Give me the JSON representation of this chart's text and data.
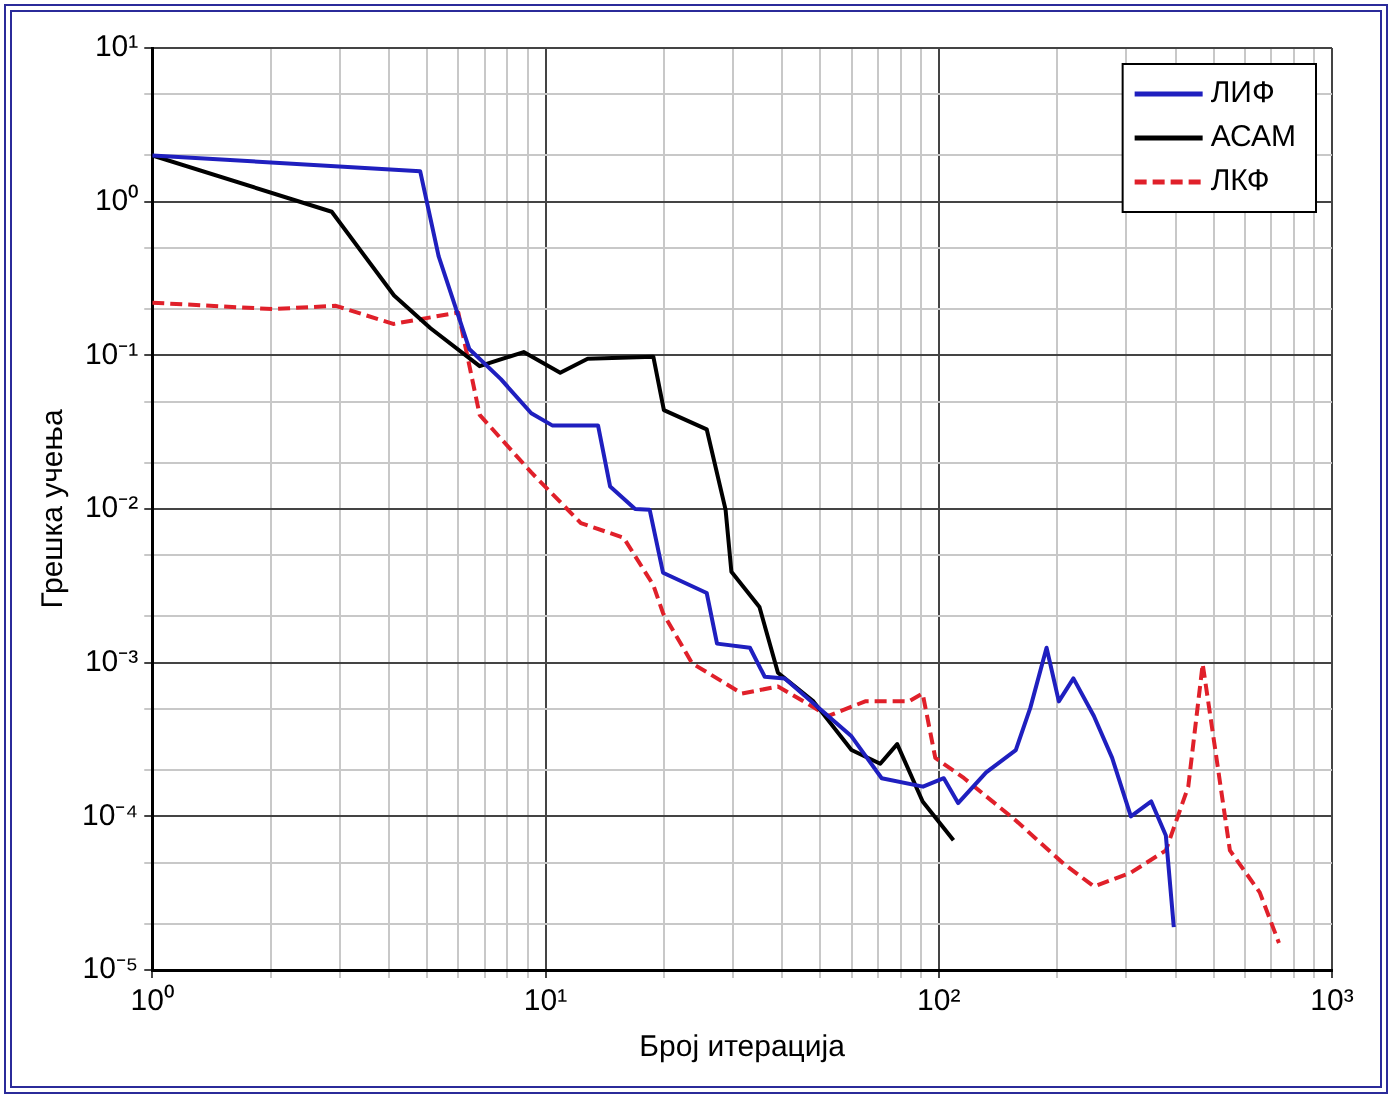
{
  "chart_data": {
    "type": "line",
    "xlabel": "Број итерација",
    "ylabel": "Грешка учења",
    "log": "xy",
    "grid": true,
    "legend": "top right",
    "marker": "none",
    "xlim": [
      1,
      1000
    ],
    "ylim": [
      1e-05,
      10
    ],
    "xticks": [
      {
        "value": 1,
        "label": "10⁰"
      },
      {
        "value": 2,
        "label": null
      },
      {
        "value": 3,
        "label": null
      },
      {
        "value": 4,
        "label": null
      },
      {
        "value": 5,
        "label": null
      },
      {
        "value": 6,
        "label": null
      },
      {
        "value": 7,
        "label": null
      },
      {
        "value": 8,
        "label": null
      },
      {
        "value": 9,
        "label": null
      },
      {
        "value": 10,
        "label": "10¹"
      },
      {
        "value": 20,
        "label": null
      },
      {
        "value": 30,
        "label": null
      },
      {
        "value": 40,
        "label": null
      },
      {
        "value": 50,
        "label": null
      },
      {
        "value": 60,
        "label": null
      },
      {
        "value": 70,
        "label": null
      },
      {
        "value": 80,
        "label": null
      },
      {
        "value": 90,
        "label": null
      },
      {
        "value": 100,
        "label": "10²"
      },
      {
        "value": 200,
        "label": null
      },
      {
        "value": 300,
        "label": null
      },
      {
        "value": 400,
        "label": null
      },
      {
        "value": 500,
        "label": null
      },
      {
        "value": 600,
        "label": null
      },
      {
        "value": 700,
        "label": null
      },
      {
        "value": 800,
        "label": null
      },
      {
        "value": 900,
        "label": null
      },
      {
        "value": 1000,
        "label": "10³"
      }
    ],
    "yticks": [
      {
        "value": 1e-05,
        "label": "10⁻⁵"
      },
      {
        "value": 2e-05,
        "label": null
      },
      {
        "value": 5e-05,
        "label": null
      },
      {
        "value": 0.0001,
        "label": "10⁻⁴"
      },
      {
        "value": 0.0002,
        "label": null
      },
      {
        "value": 0.0005,
        "label": null
      },
      {
        "value": 0.001,
        "label": "10⁻³"
      },
      {
        "value": 0.002,
        "label": null
      },
      {
        "value": 0.005,
        "label": null
      },
      {
        "value": 0.01,
        "label": "10⁻²"
      },
      {
        "value": 0.02,
        "label": null
      },
      {
        "value": 0.05,
        "label": null
      },
      {
        "value": 0.1,
        "label": "10⁻¹"
      },
      {
        "value": 0.2,
        "label": null
      },
      {
        "value": 0.5,
        "label": null
      },
      {
        "value": 1,
        "label": "10⁰"
      },
      {
        "value": 2,
        "label": null
      },
      {
        "value": 5,
        "label": null
      },
      {
        "value": 10,
        "label": "10¹"
      }
    ],
    "series": [
      {
        "name": "ЛИФ",
        "color": "#1f1fbf",
        "line_style": "solid",
        "x": [
          1,
          4.8,
          5.35,
          6.4,
          7.7,
          9.2,
          10.4,
          13.6,
          14.6,
          16.9,
          18.4,
          19.9,
          25.7,
          27.3,
          33.1,
          36.1,
          40.6,
          59.8,
          71.6,
          91.2,
          103,
          112,
          132,
          157,
          171,
          188,
          202,
          220,
          248,
          276,
          308,
          347,
          378,
          396
        ],
        "values": [
          2.0,
          1.58,
          0.44,
          0.11,
          0.07,
          0.042,
          0.035,
          0.035,
          0.014,
          0.01,
          0.0099,
          0.00385,
          0.00284,
          0.00133,
          0.00125,
          0.00081,
          0.00079,
          0.000335,
          0.000177,
          0.000156,
          0.000177,
          0.000122,
          0.000193,
          0.00027,
          0.00051,
          0.00125,
          0.00056,
          0.00079,
          0.00045,
          0.00024,
          0.0001,
          0.000125,
          7.5e-05,
          1.9e-05
        ]
      },
      {
        "name": "АСАМ",
        "color": "#000000",
        "line_style": "solid",
        "x": [
          1,
          2.86,
          4.12,
          5.1,
          6.8,
          8.8,
          10.9,
          12.8,
          18.8,
          20,
          25.7,
          28.7,
          29.7,
          35,
          39,
          48,
          60,
          71,
          78.4,
          91,
          109
        ],
        "values": [
          2.0,
          0.86,
          0.245,
          0.15,
          0.085,
          0.105,
          0.077,
          0.095,
          0.098,
          0.044,
          0.033,
          0.0099,
          0.0039,
          0.0023,
          0.00086,
          0.00056,
          0.00027,
          0.00022,
          0.000295,
          0.000125,
          7e-05
        ]
      },
      {
        "name": "ЛКФ",
        "color": "#e0202a",
        "line_style": "dashed",
        "x": [
          1,
          2.02,
          2.93,
          4.1,
          6.0,
          6.8,
          9.2,
          12.3,
          15.8,
          18.8,
          19.9,
          23.6,
          31.6,
          39,
          52.4,
          65,
          84,
          91,
          98,
          116,
          157,
          208,
          248,
          308,
          378,
          431,
          469,
          496,
          550,
          655,
          733
        ],
        "values": [
          0.22,
          0.2,
          0.21,
          0.16,
          0.19,
          0.041,
          0.0173,
          0.0081,
          0.0065,
          0.0032,
          0.0021,
          0.00099,
          0.00063,
          0.0007,
          0.00045,
          0.00056,
          0.00056,
          0.00063,
          0.00024,
          0.000177,
          9.4e-05,
          4.9e-05,
          3.5e-05,
          4.3e-05,
          6e-05,
          0.000156,
          0.00098,
          0.00037,
          6e-05,
          3.2e-05,
          1.5e-05
        ]
      }
    ]
  }
}
